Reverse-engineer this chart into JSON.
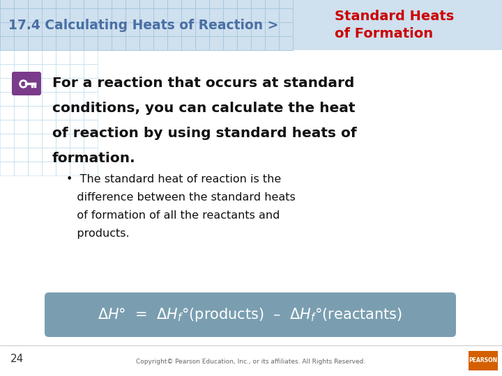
{
  "title_left": "17.4 Calculating Heats of Reaction >",
  "title_right": "Standard Heats\nof Formation",
  "title_left_color": "#4a6fa5",
  "title_right_color": "#cc0000",
  "bg_color": "#ffffff",
  "header_bg_color": "#cfe0ee",
  "grid_color": "#a8c8de",
  "main_text_line1": "For a reaction that occurs at standard",
  "main_text_line2": "conditions, you can calculate the heat",
  "main_text_line3": "of reaction by using standard heats of",
  "main_text_line4": "formation.",
  "bullet_line1": "•  The standard heat of reaction is the",
  "bullet_line2": "   difference between the standard heats",
  "bullet_line3": "   of formation of all the reactants and",
  "bullet_line4": "   products.",
  "formula_bg": "#7a9eb0",
  "formula_text_color": "#ffffff",
  "key_icon_bg": "#7a3b8a",
  "page_num": "24",
  "copyright": "Copyright© Pearson Education, Inc., or its affiliates. All Rights Reserved.",
  "pearson_bg": "#d45f00"
}
